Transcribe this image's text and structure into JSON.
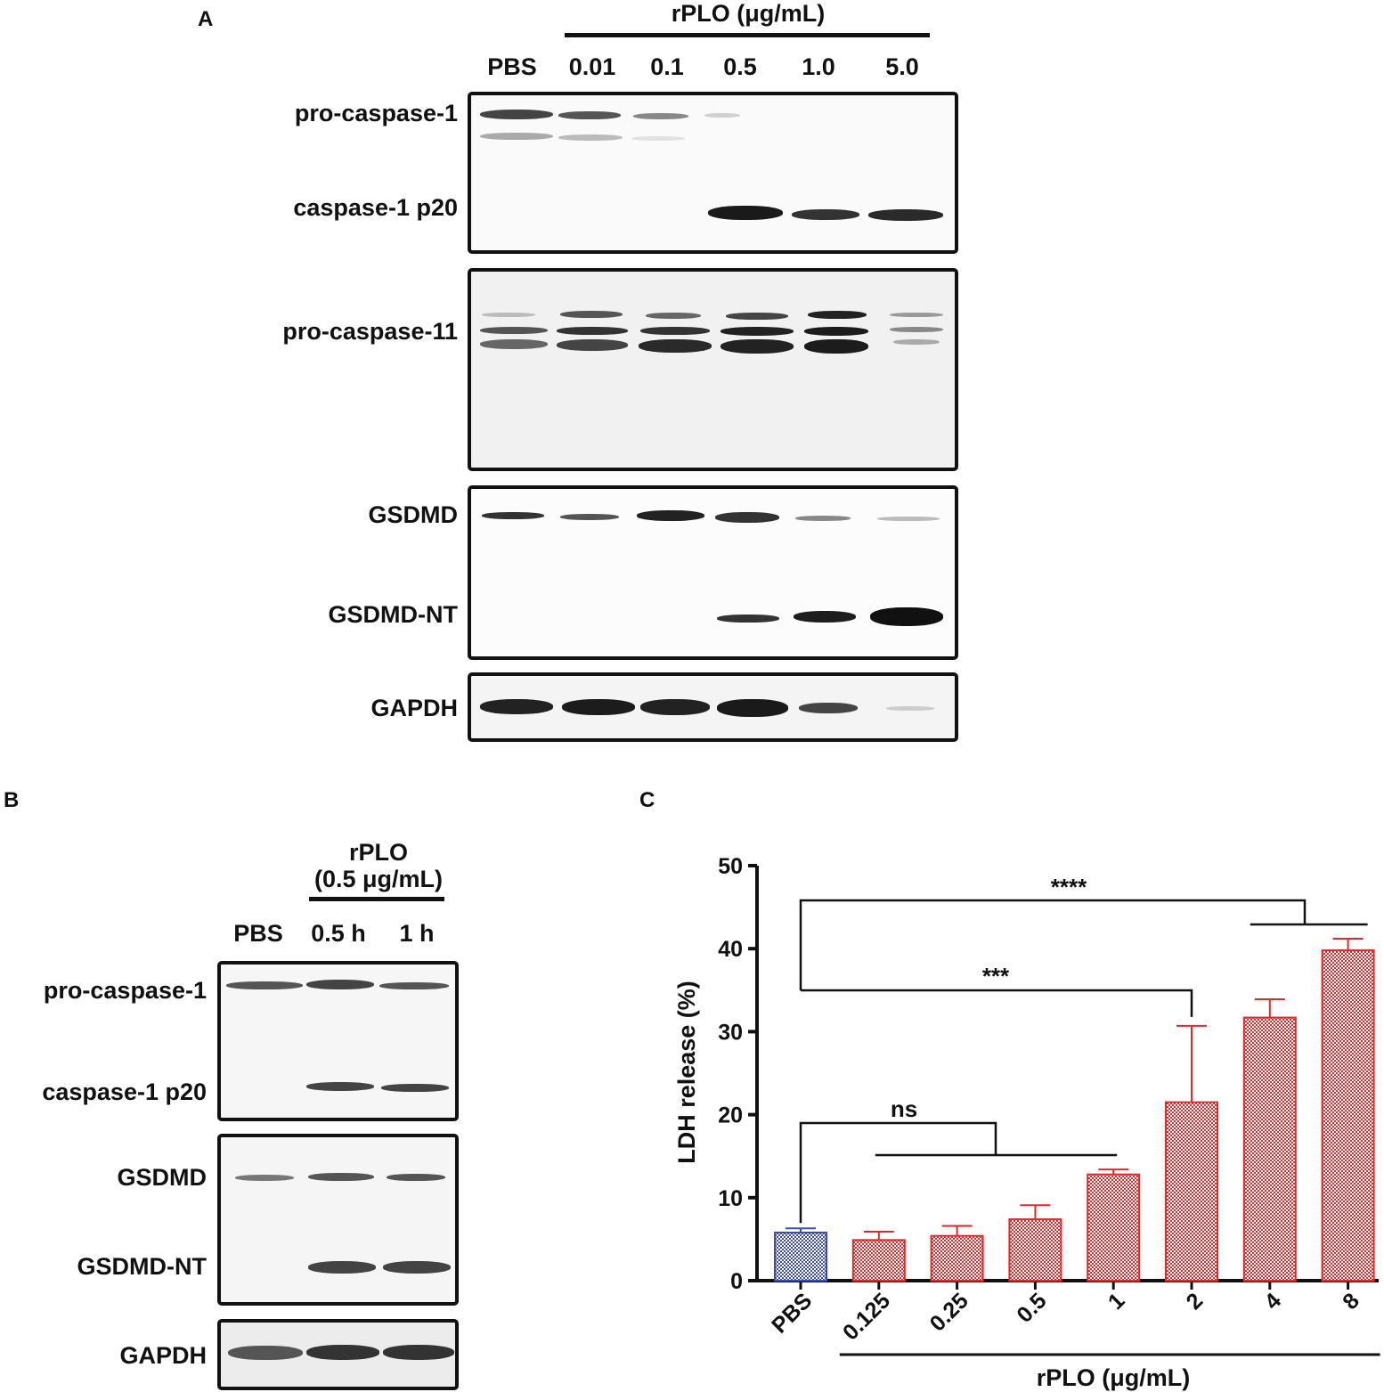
{
  "panel_a": {
    "letter": "A",
    "treatment": "rPLO (μg/mL)",
    "lanes": [
      "PBS",
      "0.01",
      "0.1",
      "0.5",
      "1.0",
      "5.0"
    ],
    "blots": [
      {
        "labels": [
          "pro-caspase-1",
          "caspase-1 p20"
        ]
      },
      {
        "labels": [
          "pro-caspase-11"
        ]
      },
      {
        "labels": [
          "GSDMD",
          "GSDMD-NT"
        ]
      },
      {
        "labels": [
          "GAPDH"
        ]
      }
    ]
  },
  "panel_b": {
    "letter": "B",
    "treatment_line1": "rPLO",
    "treatment_line2": "(0.5 μg/mL)",
    "lanes": [
      "PBS",
      "0.5 h",
      "1 h"
    ],
    "blots": [
      {
        "labels": [
          "pro-caspase-1",
          "caspase-1 p20"
        ]
      },
      {
        "labels": [
          "GSDMD",
          "GSDMD-NT"
        ]
      },
      {
        "labels": [
          "GAPDH"
        ]
      }
    ]
  },
  "panel_c": {
    "letter": "C",
    "chart_data": {
      "type": "bar",
      "ylabel": "LDH release (%)",
      "xlabel": "rPLO (μg/mL)",
      "categories": [
        "PBS",
        "0.125",
        "0.25",
        "0.5",
        "1",
        "2",
        "4",
        "8"
      ],
      "values": [
        5.8,
        4.9,
        5.4,
        7.4,
        12.8,
        21.5,
        31.7,
        39.8
      ],
      "errors": [
        0.5,
        1.0,
        1.2,
        1.7,
        0.6,
        9.2,
        2.2,
        1.4
      ],
      "ylim": [
        0,
        50
      ],
      "yticks": [
        "0",
        "10",
        "20",
        "30",
        "40",
        "50"
      ],
      "colors": {
        "control": "#3b4bb0",
        "treated": "#e02a2a"
      },
      "significance": [
        {
          "label": "ns",
          "from": "PBS",
          "to": [
            "0.125",
            "0.25",
            "0.5",
            "1"
          ]
        },
        {
          "label": "***",
          "from": "PBS",
          "to": [
            "2"
          ]
        },
        {
          "label": "****",
          "from": "PBS",
          "to": [
            "4",
            "8"
          ]
        }
      ]
    }
  }
}
